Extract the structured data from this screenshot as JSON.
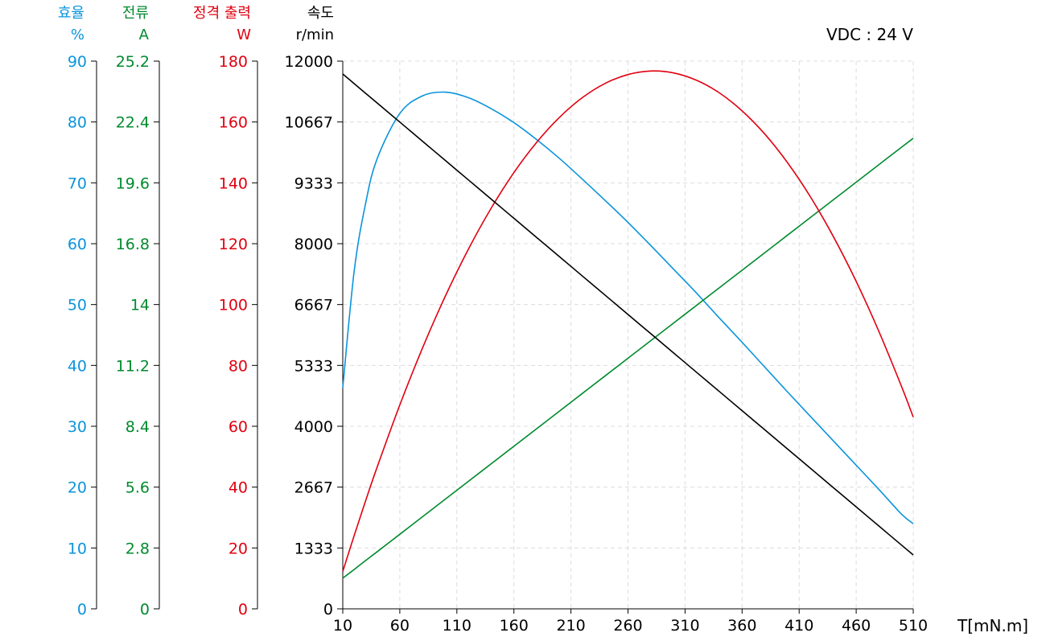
{
  "chart_data": {
    "type": "line",
    "annotation": "VDC : 24 V",
    "xlabel": "T[mN.m]",
    "xlim": [
      10,
      510
    ],
    "xticks": [
      "10",
      "60",
      "110",
      "160",
      "210",
      "260",
      "310",
      "360",
      "410",
      "460",
      "510"
    ],
    "grid": true,
    "x": [
      10,
      20,
      30,
      40,
      60,
      80,
      100,
      120,
      140,
      160,
      180,
      200,
      220,
      240,
      260,
      280,
      300,
      320,
      340,
      360,
      380,
      400,
      420,
      440,
      460,
      480,
      500,
      510
    ],
    "axes": [
      {
        "id": "eff",
        "label": "효율",
        "unit": "%",
        "color": "#0a94dc",
        "ylim": [
          0,
          90
        ],
        "ticks": [
          "0",
          "10",
          "20",
          "30",
          "40",
          "50",
          "60",
          "70",
          "80",
          "90"
        ]
      },
      {
        "id": "cur",
        "label": "전류",
        "unit": "A",
        "color": "#008a2e",
        "ylim": [
          0,
          25.2
        ],
        "ticks": [
          "0",
          "2.8",
          "5.6",
          "8.4",
          "11.2",
          "14",
          "16.8",
          "19.6",
          "22.4",
          "25.2"
        ]
      },
      {
        "id": "pow",
        "label": "정격 출력",
        "unit": "W",
        "color": "#e00010",
        "ylim": [
          0,
          180
        ],
        "ticks": [
          "0",
          "20",
          "40",
          "60",
          "80",
          "100",
          "120",
          "140",
          "160",
          "180"
        ]
      },
      {
        "id": "spd",
        "label": "속도",
        "unit": "r/min",
        "color": "#000000",
        "ylim": [
          0,
          12000
        ],
        "ticks": [
          "0",
          "1333",
          "2667",
          "4000",
          "5333",
          "6667",
          "8000",
          "9333",
          "10667",
          "12000"
        ]
      }
    ],
    "series": [
      {
        "axis": "eff",
        "values": [
          36.3,
          55.5,
          66.6,
          73.9,
          81.4,
          84.3,
          84.9,
          84.0,
          82.2,
          79.9,
          77.1,
          74.0,
          70.6,
          67.1,
          63.5,
          59.7,
          55.8,
          51.9,
          47.8,
          43.8,
          39.7,
          35.6,
          31.6,
          27.6,
          23.6,
          19.6,
          15.5,
          14.0
        ]
      },
      {
        "axis": "cur",
        "values": [
          1.41,
          1.81,
          2.22,
          2.62,
          3.43,
          4.24,
          5.05,
          5.86,
          6.67,
          7.48,
          8.29,
          9.1,
          9.91,
          10.72,
          11.53,
          12.34,
          13.15,
          13.96,
          14.77,
          15.58,
          16.39,
          17.2,
          18.01,
          18.82,
          19.63,
          20.44,
          21.25,
          21.65
        ]
      },
      {
        "axis": "pow",
        "values": [
          12.27,
          24.1,
          35.49,
          46.44,
          67.0,
          85.81,
          102.85,
          118.12,
          131.63,
          143.37,
          153.34,
          161.56,
          168.0,
          172.69,
          175.59,
          176.75,
          176.12,
          173.72,
          169.59,
          163.65,
          155.99,
          146.53,
          135.33,
          122.33,
          107.61,
          91.08,
          72.83,
          63.02
        ]
      },
      {
        "axis": "spd",
        "values": [
          11718,
          11507,
          11296,
          11086,
          10664,
          10243,
          9821,
          9400,
          8978,
          8557,
          8135,
          7714,
          7292,
          6871,
          6449,
          6028,
          5606,
          5184,
          4763,
          4341,
          3920,
          3498,
          3077,
          2655,
          2234,
          1812,
          1391,
          1180
        ]
      }
    ]
  }
}
